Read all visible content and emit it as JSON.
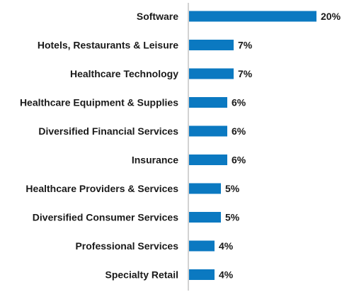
{
  "chart_data": {
    "type": "bar",
    "orientation": "horizontal",
    "title": "",
    "xlabel": "",
    "ylabel": "",
    "categories": [
      "Software",
      "Hotels, Restaurants & Leisure",
      "Healthcare Technology",
      "Healthcare Equipment & Supplies",
      "Diversified Financial Services",
      "Insurance",
      "Healthcare Providers & Services",
      "Diversified Consumer Services",
      "Professional Services",
      "Specialty Retail"
    ],
    "values": [
      20,
      7,
      7,
      6,
      6,
      6,
      5,
      5,
      4,
      4
    ],
    "value_labels": [
      "20%",
      "7%",
      "7%",
      "6%",
      "6%",
      "6%",
      "5%",
      "5%",
      "4%",
      "4%"
    ],
    "value_unit": "%",
    "xlim": [
      0,
      20
    ],
    "grid": false,
    "legend": "none",
    "bar_color": "#0b79c1"
  }
}
